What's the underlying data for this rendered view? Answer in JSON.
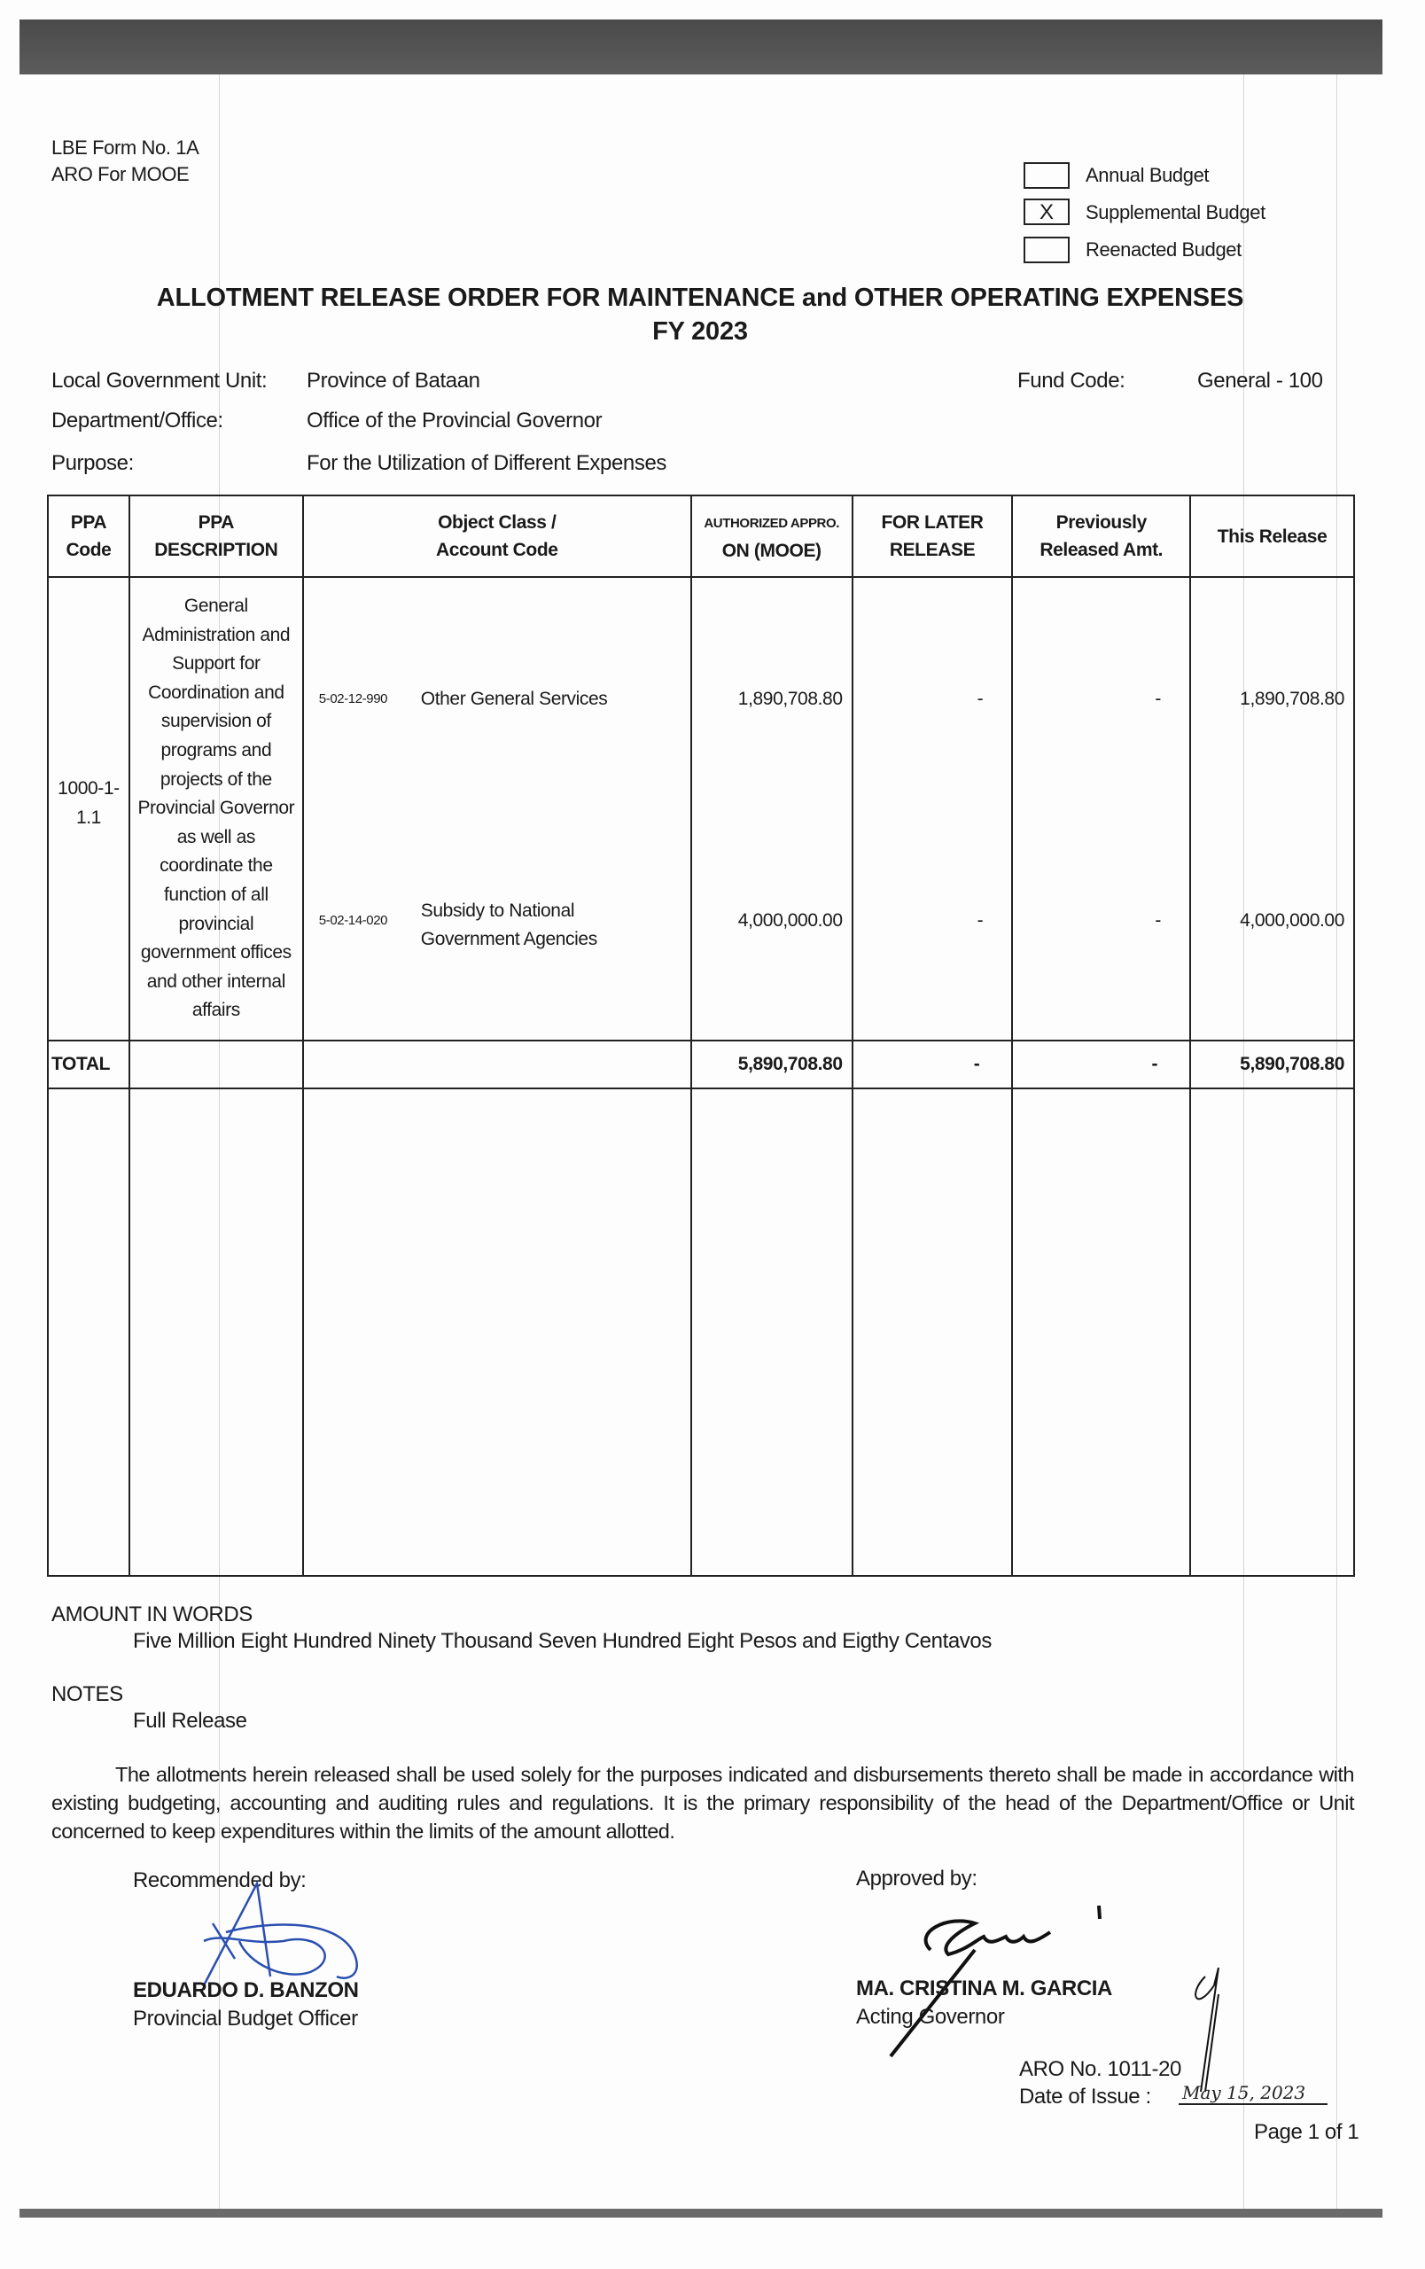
{
  "header": {
    "form_no": "LBE Form No. 1A",
    "form_type": "ARO For MOOE",
    "budget_types": [
      {
        "label": "Annual Budget",
        "checked": false,
        "mark": ""
      },
      {
        "label": "Supplemental Budget",
        "checked": true,
        "mark": "X"
      },
      {
        "label": "Reenacted Budget",
        "checked": false,
        "mark": ""
      }
    ],
    "title": "ALLOTMENT RELEASE ORDER FOR MAINTENANCE and OTHER OPERATING EXPENSES",
    "fiscal_year": "FY 2023"
  },
  "info": {
    "lgu_label": "Local Government Unit:",
    "lgu_value": "Province of Bataan",
    "fund_code_label": "Fund Code:",
    "fund_code_value": "General - 100",
    "dept_label": "Department/Office:",
    "dept_value": "Office of the Provincial Governor",
    "purpose_label": "Purpose:",
    "purpose_value": "For the Utilization of Different Expenses"
  },
  "table": {
    "headers": {
      "ppa_code_1": "PPA",
      "ppa_code_2": "Code",
      "ppa_desc_1": "PPA",
      "ppa_desc_2": "DESCRIPTION",
      "object_1": "Object Class /",
      "object_2": "Account Code",
      "auth_1": "AUTHORIZED APPRO.",
      "auth_2": "ON (MOOE)",
      "later_1": "FOR LATER",
      "later_2": "RELEASE",
      "prev_1": "Previously",
      "prev_2": "Released Amt.",
      "this_release": "This Release"
    },
    "ppa_code": "1000-1-1.1",
    "ppa_description": "General Administration and Support for Coordination and supervision of programs and projects of the Provincial Governor as well as coordinate the function of all provincial government offices and other internal affairs",
    "rows": [
      {
        "account_code": "5-02-12-990",
        "object_class": "Other General Services",
        "authorized": "1,890,708.80",
        "for_later": "-",
        "previously": "-",
        "this_release": "1,890,708.80"
      },
      {
        "account_code": "5-02-14-020",
        "object_class": "Subsidy to National Government Agencies",
        "authorized": "4,000,000.00",
        "for_later": "-",
        "previously": "-",
        "this_release": "4,000,000.00"
      }
    ],
    "total": {
      "label": "TOTAL",
      "authorized": "5,890,708.80",
      "for_later": "-",
      "previously": "-",
      "this_release": "5,890,708.80"
    }
  },
  "amount_in_words": {
    "label": "AMOUNT IN WORDS",
    "value": "Five Million Eight Hundred Ninety Thousand Seven Hundred Eight Pesos and Eigthy Centavos"
  },
  "notes": {
    "label": "NOTES",
    "value": "Full Release"
  },
  "paragraph": "The allotments herein released shall be used solely for the purposes indicated and disbursements thereto shall be made in accordance with existing budgeting, accounting and auditing rules and regulations. It is the primary responsibility of the head of the Department/Office or Unit concerned to keep expenditures within the limits of the amount allotted.",
  "signatories": {
    "recommended_label": "Recommended by:",
    "recommended_name": "EDUARDO D. BANZON",
    "recommended_title": "Provincial Budget Officer",
    "approved_label": "Approved by:",
    "approved_name": "MA. CRISTINA M. GARCIA",
    "approved_title": "Acting Governor"
  },
  "footer": {
    "aro_no": "ARO No. 1011-20",
    "date_label": "Date of Issue :",
    "date_value": "May 15, 2023",
    "page": "Page 1 of 1"
  },
  "colors": {
    "ink": "#1a1a1a",
    "signature_blue": "#2a4fb0",
    "scan_band": "#555555"
  }
}
